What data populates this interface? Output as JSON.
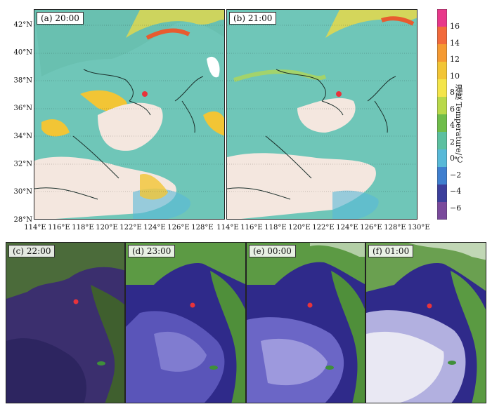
{
  "panels": {
    "a": {
      "label": "(a) 20:00"
    },
    "b": {
      "label": "(b) 21:00"
    },
    "c": {
      "label": "(c) 22:00"
    },
    "d": {
      "label": "(d) 23:00"
    },
    "e": {
      "label": "(e) 00:00"
    },
    "f": {
      "label": "(f) 01:00"
    }
  },
  "axes": {
    "lat_labels": [
      "42°N",
      "40°N",
      "38°N",
      "36°N",
      "34°N",
      "32°N",
      "30°N",
      "28°N"
    ],
    "lon_labels_a": [
      "114°E",
      "116°E",
      "118°E",
      "120°E",
      "122°E",
      "124°E",
      "126°E",
      "128°E"
    ],
    "lon_labels_b": [
      "114°E",
      "116°E",
      "118°E",
      "120°E",
      "122°E",
      "124°E",
      "126°E",
      "128°E",
      "130°E"
    ]
  },
  "colorbar": {
    "title": "温度 Temperature/℃",
    "ticks": [
      "16",
      "14",
      "12",
      "10",
      "8",
      "6",
      "4",
      "2",
      "0",
      "−2",
      "−4",
      "−6"
    ],
    "colors": [
      "#e8388a",
      "#f26a3c",
      "#f59a32",
      "#f2c535",
      "#f4e54a",
      "#b9d94a",
      "#6fbd4a",
      "#5cc0a0",
      "#58b9d8",
      "#3f7fcf",
      "#3c3f9c",
      "#7a4a9c"
    ]
  },
  "map_colors": {
    "cloud_warm": "#6fc6b8",
    "cloud_cold": "#f4e7df",
    "satellite_land": "#4f8f3a",
    "satellite_cloud": "#2d1f8a",
    "site_marker": "#e8333b"
  }
}
